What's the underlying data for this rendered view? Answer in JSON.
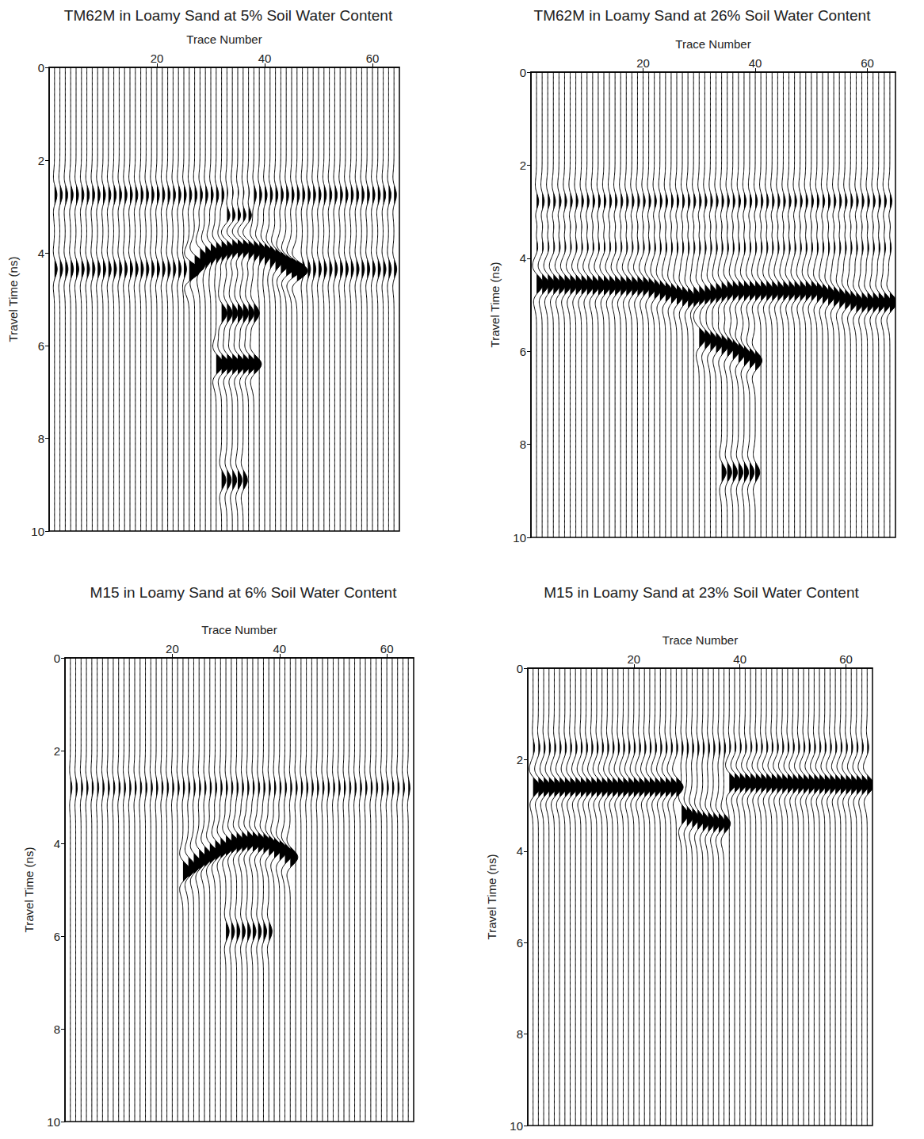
{
  "chart_data": [
    {
      "type": "wiggle",
      "title": "TM62M in Loamy Sand at 5% Soil Water Content",
      "x_label": "Trace Number",
      "y_label": "Travel Time (ns)",
      "xlim": [
        0,
        65
      ],
      "ylim": [
        10,
        0
      ],
      "xticks": [
        20,
        40,
        60
      ],
      "yticks": [
        0,
        2,
        4,
        6,
        8,
        10
      ],
      "trace_count": 64,
      "color": "#000000",
      "events": [
        {
          "x": [
            1,
            64
          ],
          "y": [
            2.75,
            2.75
          ],
          "amplitude": 0.45
        },
        {
          "x": [
            1,
            64
          ],
          "y": [
            4.35,
            4.35
          ],
          "amplitude": 0.5
        },
        {
          "x": [
            26,
            28,
            30,
            32,
            34,
            36,
            38,
            40,
            42,
            44,
            46
          ],
          "y": [
            4.4,
            4.1,
            4.0,
            3.95,
            3.9,
            3.9,
            3.95,
            4.0,
            4.1,
            4.25,
            4.4
          ],
          "amplitude": 1.5
        },
        {
          "x": [
            33,
            37
          ],
          "y": [
            3.2,
            3.2
          ],
          "amplitude": 0.8
        },
        {
          "x": [
            32,
            38
          ],
          "y": [
            5.3,
            5.3
          ],
          "amplitude": 1.0
        },
        {
          "x": [
            31,
            38
          ],
          "y": [
            6.4,
            6.4
          ],
          "amplitude": 1.4
        },
        {
          "x": [
            32,
            36
          ],
          "y": [
            8.9,
            8.9
          ],
          "amplitude": 0.8
        }
      ]
    },
    {
      "type": "wiggle",
      "title": "TM62M in Loamy Sand at 26% Soil Water Content",
      "x_label": "Trace Number",
      "y_label": "Travel Time (ns)",
      "xlim": [
        0,
        65
      ],
      "ylim": [
        10,
        0
      ],
      "xticks": [
        20,
        40,
        60
      ],
      "yticks": [
        0,
        2,
        4,
        6,
        8,
        10
      ],
      "trace_count": 64,
      "color": "#000000",
      "events": [
        {
          "x": [
            1,
            64
          ],
          "y": [
            2.8,
            2.8
          ],
          "amplitude": 0.5
        },
        {
          "x": [
            1,
            64
          ],
          "y": [
            3.3,
            3.3
          ],
          "amplitude": 0.4
        },
        {
          "x": [
            1,
            64
          ],
          "y": [
            3.75,
            3.75
          ],
          "amplitude": 0.4
        },
        {
          "x": [
            1,
            20,
            28,
            35,
            50,
            58,
            64
          ],
          "y": [
            4.55,
            4.6,
            4.85,
            4.7,
            4.7,
            4.95,
            4.95
          ],
          "amplitude": 1.2
        },
        {
          "x": [
            30,
            35,
            38,
            40
          ],
          "y": [
            5.7,
            5.9,
            6.1,
            6.2
          ],
          "amplitude": 1.2
        },
        {
          "x": [
            34,
            40
          ],
          "y": [
            8.6,
            8.6
          ],
          "amplitude": 0.8
        }
      ]
    },
    {
      "type": "wiggle",
      "title": "M15 in Loamy Sand at 6% Soil Water Content",
      "x_label": "Trace Number",
      "y_label": "Travel Time (ns)",
      "xlim": [
        0,
        65
      ],
      "ylim": [
        10,
        0
      ],
      "xticks": [
        20,
        40,
        60
      ],
      "yticks": [
        0,
        2,
        4,
        6,
        8,
        10
      ],
      "trace_count": 64,
      "color": "#000000",
      "events": [
        {
          "x": [
            1,
            64
          ],
          "y": [
            2.8,
            2.8
          ],
          "amplitude": 0.3
        },
        {
          "x": [
            22,
            25,
            28,
            31,
            34,
            37,
            40,
            42
          ],
          "y": [
            4.6,
            4.35,
            4.15,
            4.0,
            3.95,
            4.0,
            4.15,
            4.3
          ],
          "amplitude": 1.4
        },
        {
          "x": [
            30,
            38
          ],
          "y": [
            5.9,
            5.9
          ],
          "amplitude": 0.6
        }
      ]
    },
    {
      "type": "wiggle",
      "title": "M15 in Loamy Sand at 23% Soil Water Content",
      "x_label": "Trace Number",
      "y_label": "Travel Time (ns)",
      "xlim": [
        0,
        65
      ],
      "ylim": [
        10,
        0
      ],
      "xticks": [
        20,
        40,
        60
      ],
      "yticks": [
        0,
        2,
        4,
        6,
        8,
        10
      ],
      "trace_count": 64,
      "color": "#000000",
      "events": [
        {
          "x": [
            1,
            64
          ],
          "y": [
            1.75,
            1.75
          ],
          "amplitude": 0.3
        },
        {
          "x": [
            1,
            28
          ],
          "y": [
            2.6,
            2.6
          ],
          "amplitude": 1.3
        },
        {
          "x": [
            38,
            64
          ],
          "y": [
            2.5,
            2.55
          ],
          "amplitude": 1.3
        },
        {
          "x": [
            29,
            33,
            37
          ],
          "y": [
            3.2,
            3.35,
            3.4
          ],
          "amplitude": 1.2
        }
      ]
    }
  ]
}
